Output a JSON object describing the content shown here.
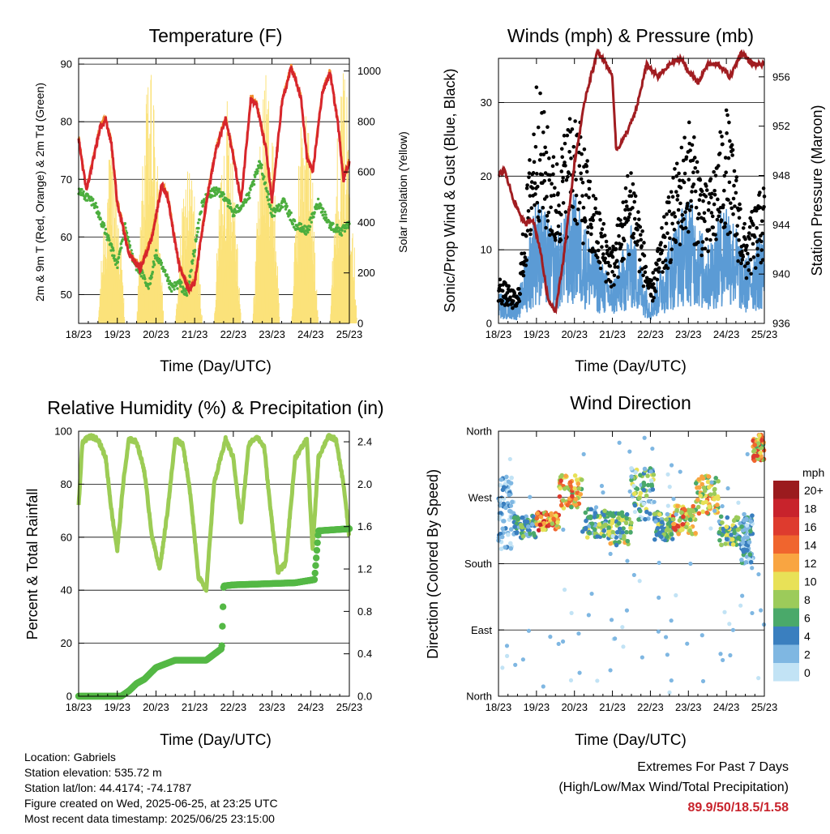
{
  "colors": {
    "temp": "#d7262c",
    "temp_9m": "#f08c2b",
    "dewpoint": "#4cae3e",
    "insolation": "#fbe27a",
    "wind": "#5b9bd5",
    "gust": "#000000",
    "pressure": "#a11d21",
    "rh": "#9ccc55",
    "precip": "#54b845"
  },
  "x_ticks": [
    "18/23",
    "19/23",
    "20/23",
    "21/23",
    "22/23",
    "23/23",
    "24/23",
    "25/23"
  ],
  "x_label": "Time (Day/UTC)",
  "panels": {
    "temperature": {
      "title": "Temperature (F)",
      "ylabel_left": "2m & 9m T (Red, Orange) & 2m Td (Green)",
      "ylabel_right": "Solar Insolation (Yellow)",
      "left_ticks": [
        "50",
        "60",
        "70",
        "80",
        "90"
      ],
      "right_ticks": [
        "0",
        "200",
        "400",
        "600",
        "800",
        "1000"
      ]
    },
    "winds": {
      "title": "Winds (mph) & Pressure (mb)",
      "ylabel_left": "Sonic/Prop Wind & Gust (Blue, Black)",
      "ylabel_right": "Station Pressure (Maroon)",
      "left_ticks": [
        "0",
        "10",
        "20",
        "30"
      ],
      "right_ticks": [
        "936",
        "940",
        "944",
        "948",
        "952",
        "956"
      ]
    },
    "humidity": {
      "title": "Relative Humidity (%) & Precipitation (in)",
      "ylabel_left": "Percent & Total Rainfall",
      "left_ticks": [
        "0",
        "20",
        "40",
        "60",
        "80",
        "100"
      ],
      "right_ticks": [
        "0.0",
        "0.4",
        "0.8",
        "1.2",
        "1.6",
        "2.0",
        "2.4"
      ]
    },
    "direction": {
      "title": "Wind Direction",
      "ylabel_left": "Direction (Colored By Speed)",
      "left_ticks": [
        "North",
        "East",
        "South",
        "West",
        "North"
      ],
      "legend_title": "mph",
      "legend_labels": [
        "20+",
        "18",
        "16",
        "14",
        "12",
        "10",
        "8",
        "6",
        "4",
        "2",
        "0"
      ],
      "legend_colors": [
        "#9b1b1e",
        "#c8232c",
        "#de3b2e",
        "#f0652e",
        "#f9a541",
        "#e8e157",
        "#9ccb5a",
        "#4aa96a",
        "#3a7fbf",
        "#7fb7e2",
        "#c2e3f5"
      ]
    }
  },
  "info": {
    "location": "Location: Gabriels",
    "elevation": "Station elevation: 535.72 m",
    "latlon": "Station lat/lon: 44.4174; -74.1787",
    "created": "Figure created on Wed, 2025-06-25, at 23:25 UTC",
    "recent": "Most recent data timestamp: 2025/06/25 23:15:00"
  },
  "extremes": {
    "line1": "Extremes For Past 7 Days",
    "line2": "(High/Low/Max Wind/Total Precipitation)",
    "values": "89.9/50/18.5/1.58"
  },
  "chart_data": [
    {
      "type": "line",
      "x": [
        "18/23",
        "19/23",
        "20/23",
        "21/23",
        "22/23",
        "23/23",
        "24/23",
        "25/23"
      ],
      "ylim": [
        45,
        91
      ],
      "y2lim": [
        0,
        1050
      ],
      "series": [
        {
          "name": "2m T",
          "x": [
            0,
            0.2,
            0.4,
            0.55,
            0.7,
            0.85,
            1.0,
            1.3,
            1.6,
            1.9,
            2.15,
            2.3,
            2.6,
            2.85,
            3.0,
            3.3,
            3.55,
            3.8,
            4.0,
            4.2,
            4.45,
            4.6,
            4.85,
            5.0,
            5.25,
            5.5,
            5.75,
            5.9,
            6.05,
            6.3,
            6.5,
            6.7,
            6.85,
            7.0
          ],
          "values": [
            77,
            68,
            74,
            79,
            80.5,
            76,
            66,
            57,
            54.5,
            60,
            69,
            67,
            55,
            51,
            52,
            66,
            75,
            80.5,
            74,
            66,
            84,
            83,
            75,
            66,
            83,
            89.5,
            84,
            74,
            71,
            85,
            88.5,
            80,
            70,
            73
          ]
        },
        {
          "name": "Td",
          "x": [
            0,
            0.4,
            0.8,
            1.0,
            1.2,
            1.4,
            1.6,
            1.8,
            2.0,
            2.2,
            2.4,
            2.6,
            2.8,
            3.0,
            3.2,
            3.5,
            3.8,
            4.0,
            4.4,
            4.7,
            5.0,
            5.3,
            5.6,
            5.9,
            6.2,
            6.5,
            6.8,
            7.0
          ],
          "values": [
            68,
            66,
            59,
            55,
            62,
            56,
            54,
            51,
            57,
            54,
            51,
            52,
            50,
            58,
            66,
            68,
            67,
            64,
            67,
            73,
            64,
            66,
            62,
            61,
            66,
            62,
            61,
            62
          ]
        },
        {
          "name": "Solar Insolation",
          "axis": "right",
          "peaks": [
            1000,
            700,
            1000,
            650,
            900,
            1000,
            900,
            1000
          ]
        }
      ]
    },
    {
      "type": "scatter",
      "x": [
        "18/23",
        "19/23",
        "20/23",
        "21/23",
        "22/23",
        "23/23",
        "24/23",
        "25/23"
      ],
      "ylim": [
        0,
        36
      ],
      "y2lim": [
        936,
        957.5
      ],
      "series": [
        {
          "name": "Wind",
          "values": [
            3,
            12,
            12,
            4,
            3,
            12,
            10,
            8
          ]
        },
        {
          "name": "Gust",
          "values": [
            5,
            28,
            24,
            9,
            6,
            22,
            24,
            14
          ]
        },
        {
          "name": "Station Pressure",
          "axis": "right",
          "x": [
            0,
            0.15,
            0.4,
            0.7,
            0.9,
            1.1,
            1.3,
            1.5,
            1.7,
            2.0,
            2.3,
            2.6,
            2.85,
            3.0,
            3.1,
            3.3,
            3.6,
            3.9,
            4.2,
            4.5,
            4.8,
            5.0,
            5.25,
            5.5,
            5.8,
            6.1,
            6.4,
            6.7,
            7.0
          ],
          "values": [
            948,
            948.5,
            946,
            944,
            944.5,
            942,
            938,
            937,
            941,
            949,
            954.5,
            958,
            957,
            956,
            950,
            951,
            953,
            957,
            956,
            957,
            957.5,
            956.5,
            955.5,
            957,
            957,
            956,
            958,
            957,
            957
          ]
        }
      ]
    },
    {
      "type": "line",
      "x": [
        "18/23",
        "19/23",
        "20/23",
        "21/23",
        "22/23",
        "23/23",
        "24/23",
        "25/23"
      ],
      "ylim": [
        0,
        100
      ],
      "y2lim": [
        0,
        2.5
      ],
      "series": [
        {
          "name": "RH",
          "x": [
            0,
            0.1,
            0.3,
            0.5,
            0.7,
            0.85,
            1.0,
            1.15,
            1.3,
            1.5,
            1.7,
            1.9,
            2.1,
            2.3,
            2.5,
            2.7,
            2.9,
            3.1,
            3.3,
            3.5,
            3.8,
            4.0,
            4.2,
            4.4,
            4.6,
            4.8,
            4.95,
            5.15,
            5.35,
            5.6,
            5.9,
            6.05,
            6.2,
            6.45,
            6.65,
            6.85,
            7.0
          ],
          "values": [
            72,
            96,
            98,
            97,
            90,
            70,
            55,
            80,
            97,
            96,
            85,
            60,
            48,
            70,
            97,
            95,
            75,
            45,
            40,
            80,
            97,
            90,
            65,
            95,
            98,
            94,
            72,
            47,
            50,
            90,
            97,
            55,
            90,
            98,
            97,
            80,
            60
          ]
        },
        {
          "name": "Total Rainfall",
          "axis": "right",
          "x": [
            0,
            1.1,
            1.3,
            1.5,
            1.7,
            2.0,
            2.5,
            3.0,
            3.3,
            3.7,
            3.75,
            4.0,
            5.6,
            6.1,
            6.2,
            7.0
          ],
          "values": [
            0,
            0,
            0.05,
            0.12,
            0.16,
            0.27,
            0.34,
            0.34,
            0.34,
            0.45,
            1.04,
            1.05,
            1.07,
            1.1,
            1.56,
            1.58
          ]
        }
      ]
    },
    {
      "type": "scatter",
      "x": [
        "18/23",
        "19/23",
        "20/23",
        "21/23",
        "22/23",
        "23/23",
        "24/23",
        "25/23"
      ],
      "yticks": [
        "North",
        "East",
        "South",
        "West",
        "North"
      ],
      "series": [
        {
          "name": "Direction (deg)",
          "values": [
            300,
            230,
            300,
            240,
            235,
            240,
            250,
            340
          ]
        }
      ]
    }
  ]
}
